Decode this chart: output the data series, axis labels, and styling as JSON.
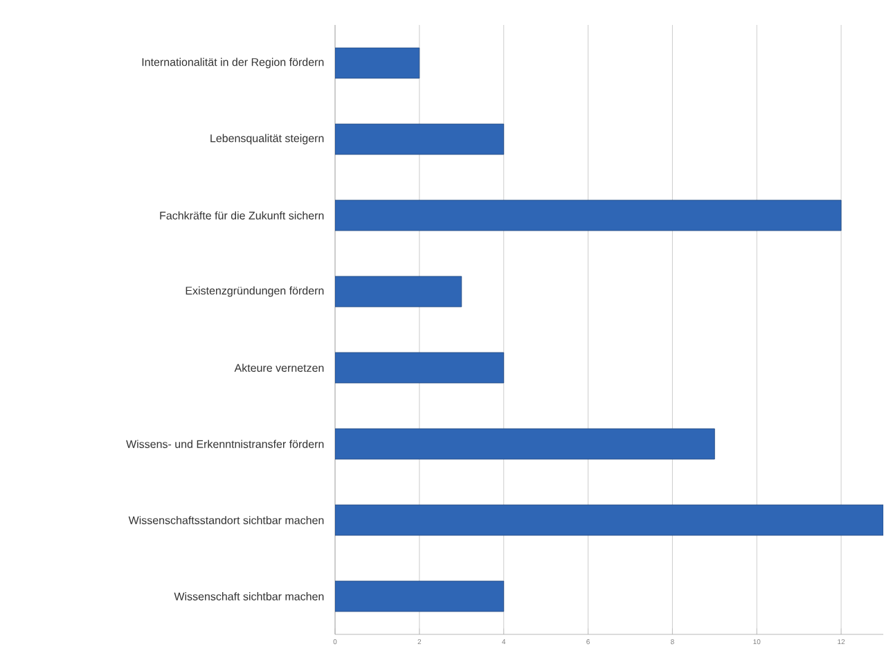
{
  "chart_data": {
    "type": "bar",
    "orientation": "horizontal",
    "categories": [
      "Internationalität in der Region fördern",
      "Lebensqualität steigern",
      "Fachkräfte für die Zukunft sichern",
      "Existenzgründungen fördern",
      "Akteure vernetzen",
      "Wissens- und Erkenntnistransfer fördern",
      "Wissenschaftsstandort sichtbar machen",
      "Wissenschaft sichtbar machen"
    ],
    "values": [
      2,
      4,
      12,
      3,
      4,
      9,
      13,
      4
    ],
    "color": "#2f66b5",
    "xlim": [
      0,
      13
    ],
    "xticks": [
      0,
      2,
      4,
      6,
      8,
      10,
      12
    ],
    "grid": "x"
  }
}
